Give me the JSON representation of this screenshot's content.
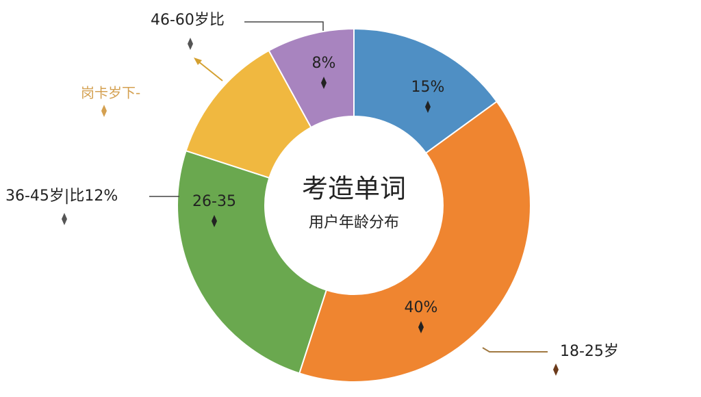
{
  "chart_data": {
    "type": "donut",
    "title": "考造单词",
    "subtitle": "用户年龄分布",
    "categories": [
      null,
      "18-25岁",
      "26-35",
      "岗卡岁下-",
      "46-60岁比"
    ],
    "values": [
      15,
      40,
      25,
      12,
      8
    ],
    "value_labels": [
      "15%",
      "40%",
      null,
      null,
      "8%"
    ],
    "colors": [
      "#4f8fc4",
      "#ef8530",
      "#6aa84f",
      "#f0b840",
      "#a884bf"
    ],
    "annotations": [
      "36-45岁|比12%"
    ]
  }
}
